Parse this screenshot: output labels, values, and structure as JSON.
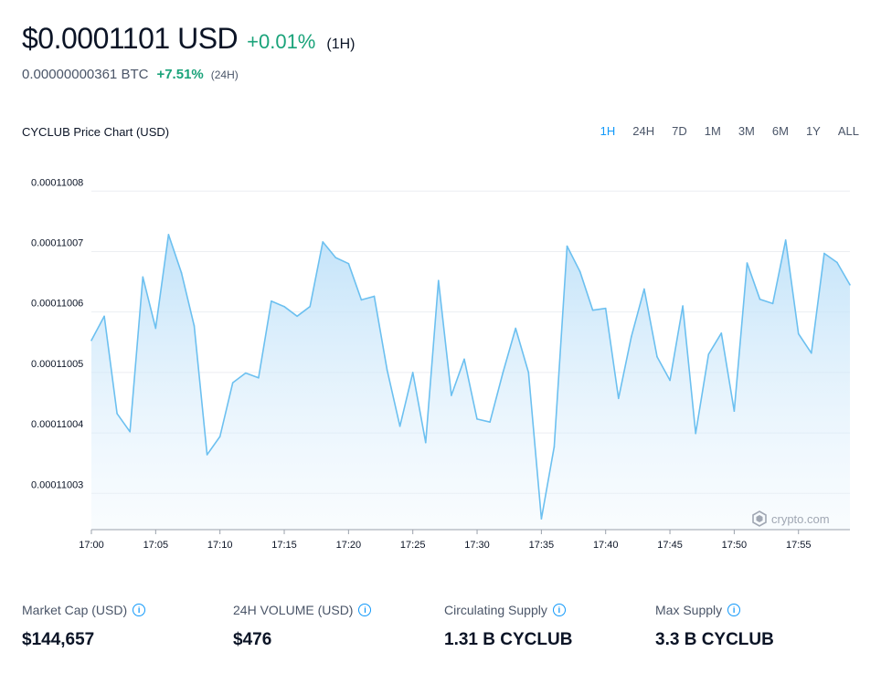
{
  "header": {
    "price": "$0.0001101 USD",
    "change": "+0.01%",
    "period": "(1H)",
    "btc_price": "0.00000000361 BTC",
    "btc_change": "+7.51%",
    "btc_period": "(24H)"
  },
  "chart_header": {
    "title": "CYCLUB Price Chart (USD)",
    "ranges": [
      "1H",
      "24H",
      "7D",
      "1M",
      "3M",
      "6M",
      "1Y",
      "ALL"
    ],
    "active_range": "1H"
  },
  "watermark": "crypto.com",
  "colors": {
    "accent": "#1199fa",
    "positive": "#1aa37a",
    "line": "#6cc0f0"
  },
  "chart_data": {
    "type": "area",
    "title": "CYCLUB Price Chart (USD)",
    "xlabel": "",
    "ylabel": "",
    "x_ticks": [
      "17:00",
      "17:05",
      "17:10",
      "17:15",
      "17:20",
      "17:25",
      "17:30",
      "17:35",
      "17:40",
      "17:45",
      "17:50",
      "17:55"
    ],
    "y_ticks": [
      "0.00011008",
      "0.00011007",
      "0.00011006",
      "0.00011005",
      "0.00011004",
      "0.00011003"
    ],
    "ylim": [
      0.000110024,
      0.0001100814
    ],
    "x_range_minutes": [
      0,
      59
    ],
    "grid": true,
    "series": [
      {
        "values": [
          0.0001100553,
          0.0001100593,
          0.0001100432,
          0.0001100402,
          0.0001100658,
          0.0001100573,
          0.0001100728,
          0.0001100665,
          0.0001100577,
          0.0001100364,
          0.0001100394,
          0.0001100483,
          0.0001100499,
          0.0001100491,
          0.0001100618,
          0.0001100609,
          0.0001100593,
          0.0001100609,
          0.0001100716,
          0.000110069,
          0.000110068,
          0.000110062,
          0.0001100626,
          0.0001100504,
          0.0001100411,
          0.00011005,
          0.0001100384,
          0.0001100652,
          0.0001100462,
          0.0001100522,
          0.0001100423,
          0.0001100418,
          0.0001100499,
          0.0001100573,
          0.00011005,
          0.0001100258,
          0.0001100377,
          0.0001100709,
          0.0001100667,
          0.0001100603,
          0.0001100606,
          0.0001100457,
          0.0001100559,
          0.0001100638,
          0.0001100526,
          0.0001100487,
          0.000110061,
          0.0001100399,
          0.000110053,
          0.0001100565,
          0.0001100436,
          0.0001100681,
          0.0001100621,
          0.0001100614,
          0.0001100719,
          0.0001100564,
          0.0001100532,
          0.0001100697,
          0.0001100682,
          0.0001100645
        ]
      }
    ]
  },
  "stats": [
    {
      "label": "Market Cap (USD)",
      "value": "$144,657"
    },
    {
      "label": "24H VOLUME (USD)",
      "value": "$476"
    },
    {
      "label": "Circulating Supply",
      "value": "1.31 B CYCLUB"
    },
    {
      "label": "Max Supply",
      "value": "3.3 B CYCLUB"
    }
  ]
}
